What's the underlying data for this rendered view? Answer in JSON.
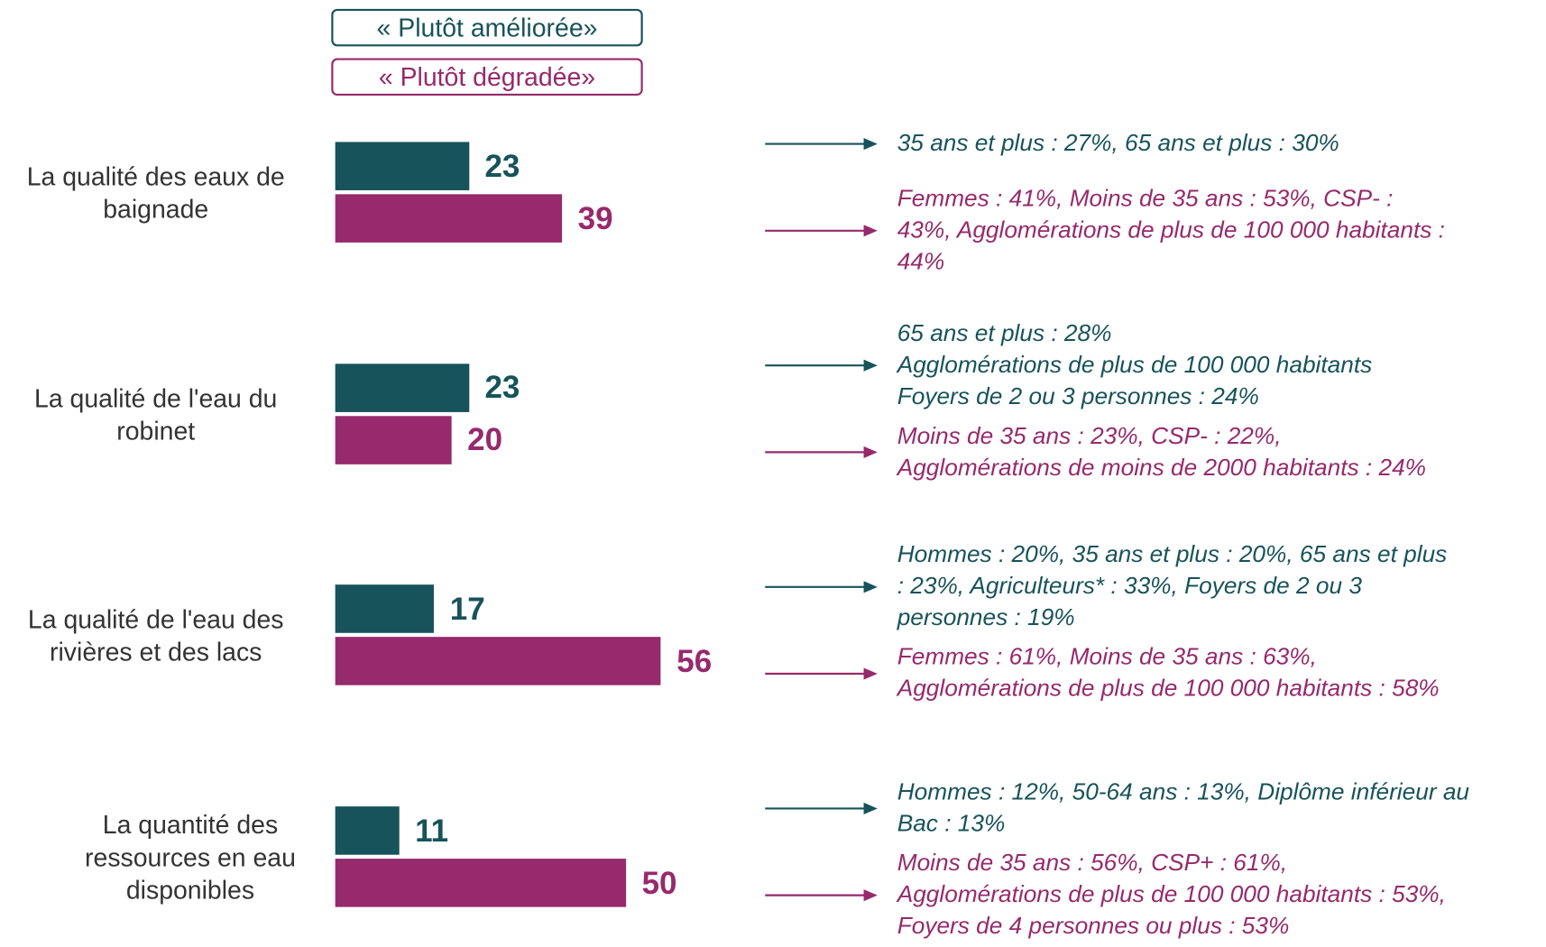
{
  "chart_data": {
    "type": "bar",
    "orientation": "horizontal",
    "categories": [
      "La qualité des eaux de baignade",
      "La qualité de l'eau du robinet",
      "La qualité de l'eau des rivières et des lacs",
      "La quantité des ressources en eau disponibles"
    ],
    "series": [
      {
        "name": "« Plutôt améliorée»",
        "color": "#17535a",
        "values": [
          23,
          23,
          17,
          11
        ],
        "annotations": [
          [
            "35 ans et plus : 27%, 65 ans et plus : 30%"
          ],
          [
            "65 ans et plus : 28%",
            "Agglomérations de plus de 100 000 habitants",
            "Foyers de 2 ou 3 personnes : 24%"
          ],
          [
            "Hommes : 20%, 35 ans et plus : 20%, 65 ans et plus",
            ": 23%, Agriculteurs* : 33%, Foyers de 2 ou 3",
            "personnes : 19%"
          ],
          [
            "Hommes : 12%, 50-64 ans : 13%, Diplôme inférieur au",
            "Bac : 13%"
          ]
        ]
      },
      {
        "name": "« Plutôt dégradée»",
        "color": "#962a6c",
        "values": [
          39,
          20,
          56,
          50
        ],
        "annotations": [
          [
            "Femmes : 41%, Moins de 35 ans : 53%, CSP- :",
            "43%, Agglomérations de plus de 100 000 habitants :",
            "44%"
          ],
          [
            "Moins de 35 ans : 23%, CSP- : 22%,",
            "Agglomérations de moins de 2000 habitants : 24%"
          ],
          [
            "Femmes : 61%, Moins de 35 ans : 63%,",
            "Agglomérations de plus de 100 000 habitants : 58%"
          ],
          [
            "Moins de 35 ans : 56%, CSP+ : 61%,",
            "Agglomérations de plus de 100 000 habitants : 53%,",
            "Foyers de 4 personnes ou plus : 53%"
          ]
        ]
      }
    ]
  }
}
